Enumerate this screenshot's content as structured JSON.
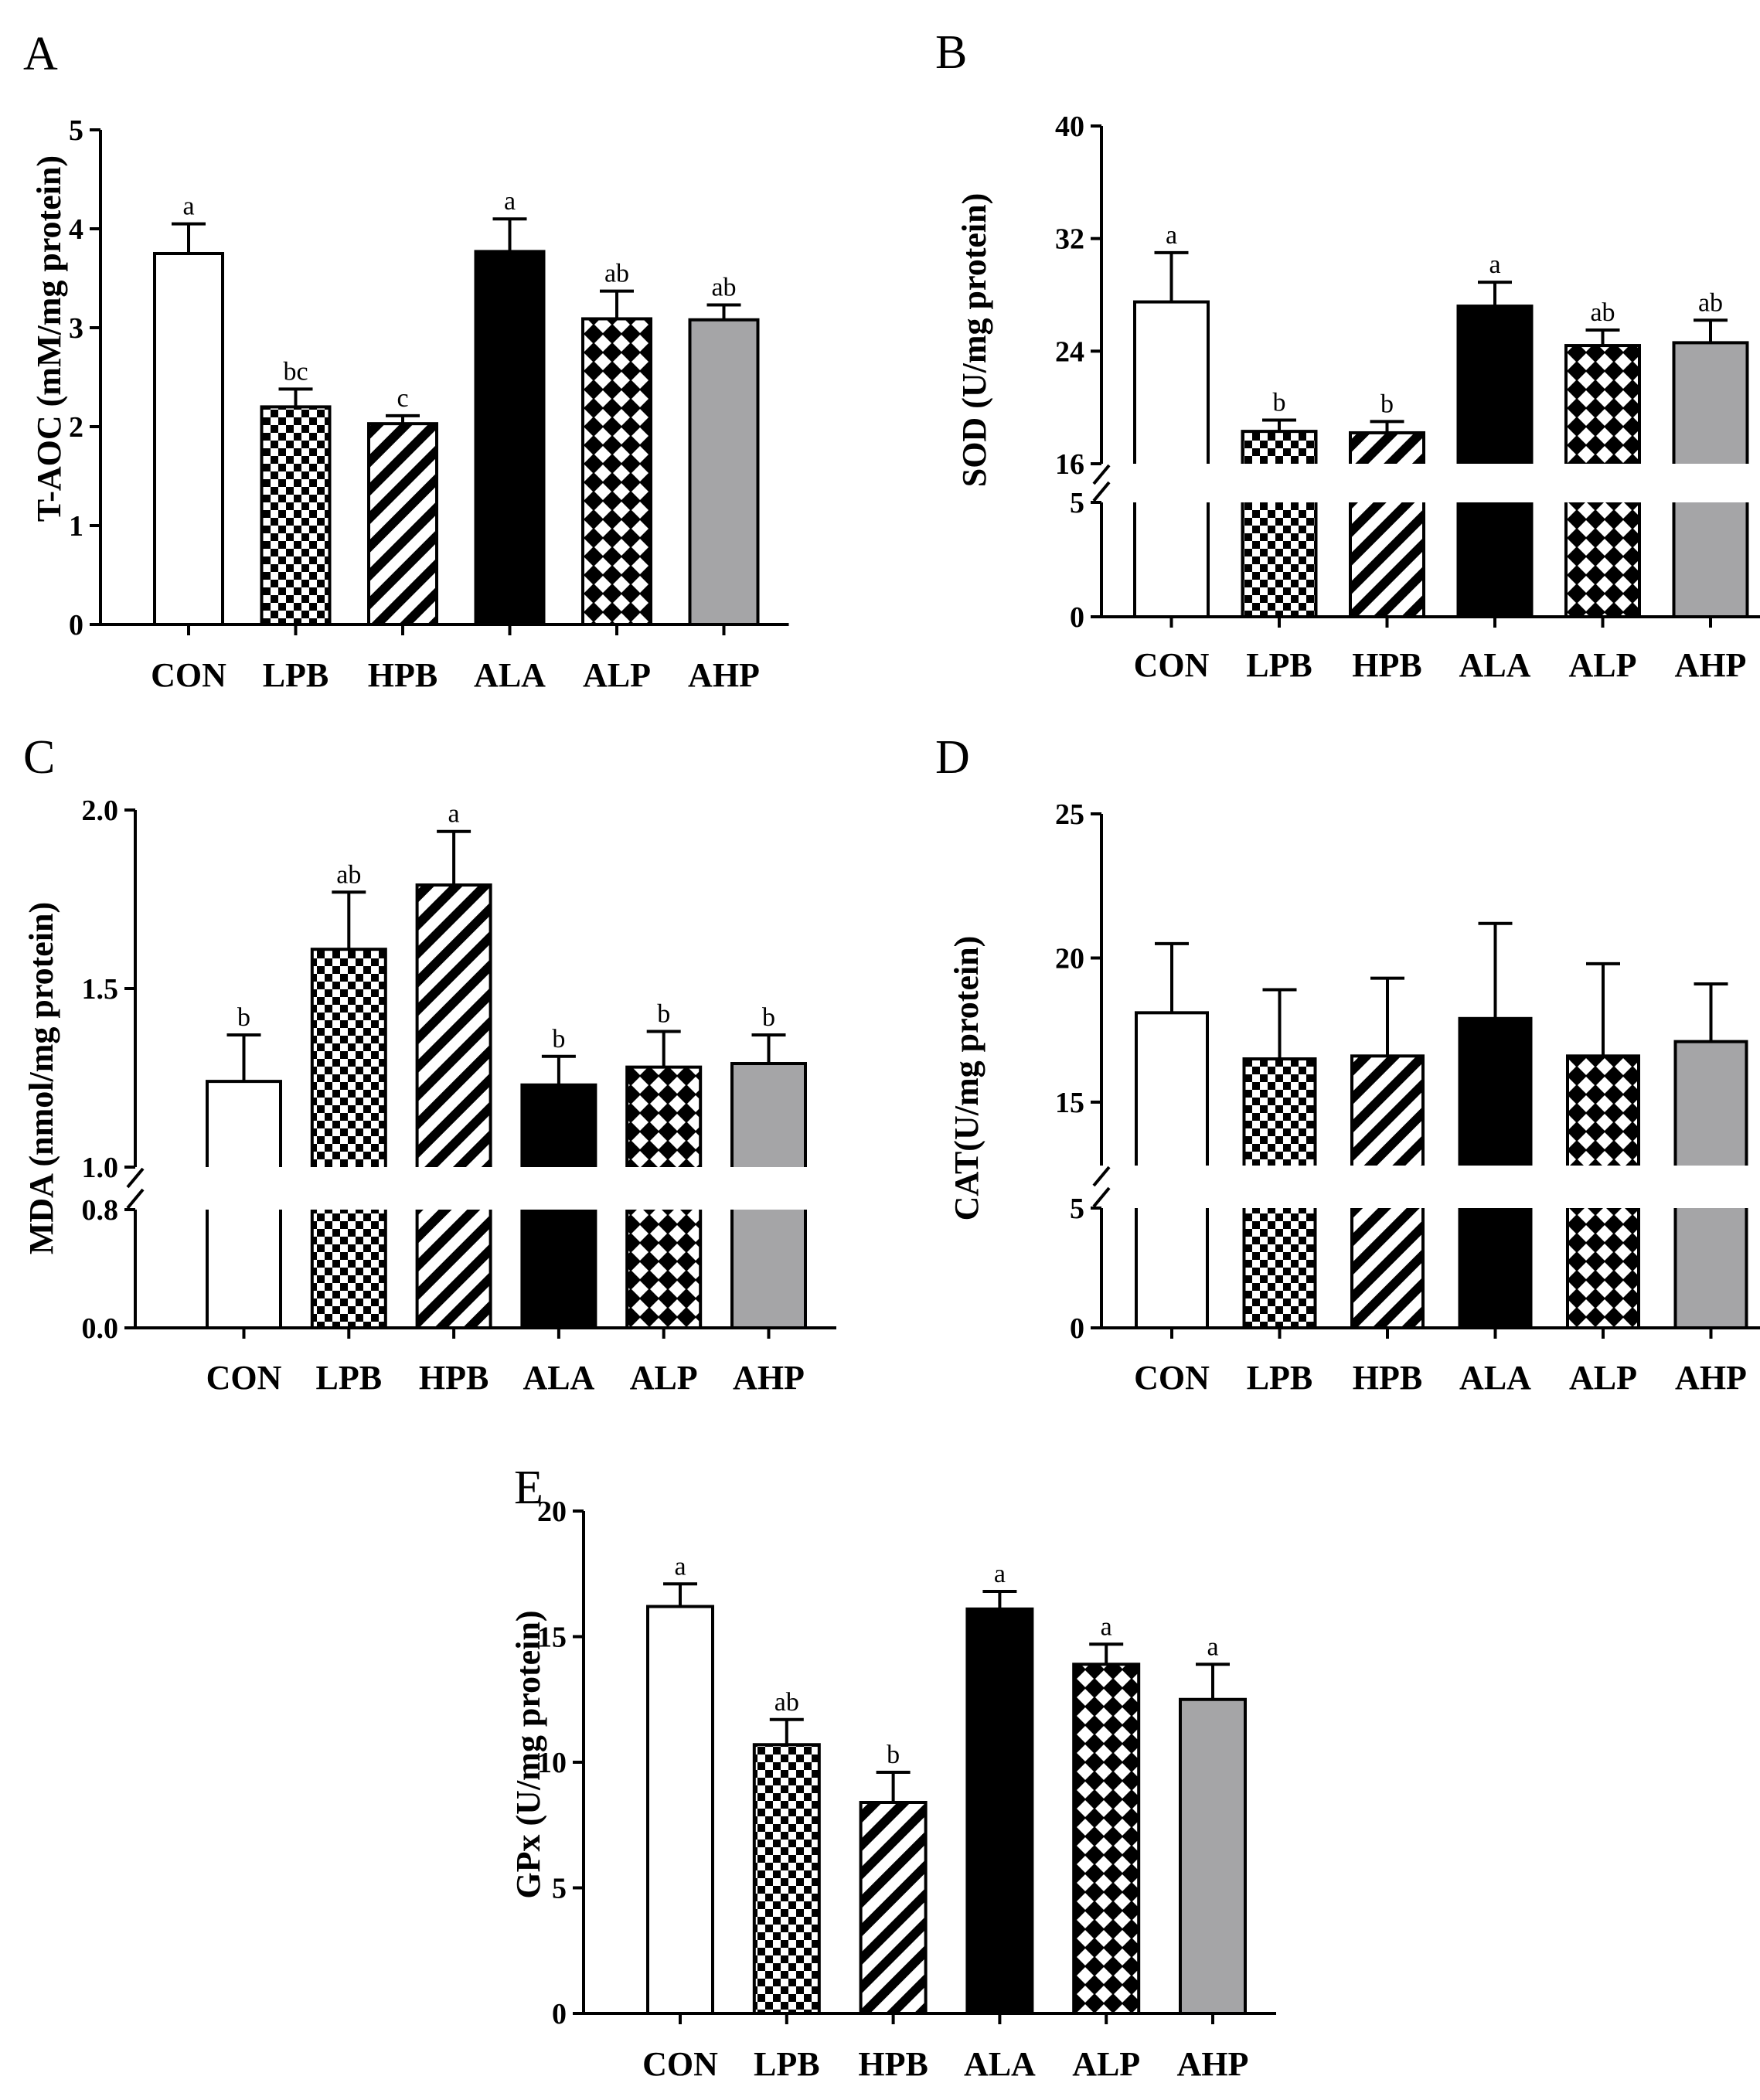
{
  "chart_data": [
    {
      "type": "bar",
      "panel": "A",
      "ylabel": "T-AOC (mM/mg protein)",
      "categories": [
        "CON",
        "LPB",
        "HPB",
        "ALA",
        "ALP",
        "AHP"
      ],
      "values": [
        3.75,
        2.2,
        2.03,
        3.77,
        3.09,
        3.08
      ],
      "errors": [
        0.3,
        0.18,
        0.08,
        0.33,
        0.28,
        0.15
      ],
      "significance": [
        "a",
        "bc",
        "c",
        "a",
        "ab",
        "ab"
      ],
      "ylim": [
        0,
        5
      ],
      "yticks": [
        "0",
        "1",
        "2",
        "3",
        "4",
        "5"
      ]
    },
    {
      "type": "bar",
      "panel": "B",
      "ylabel": "SOD (U/mg protein)",
      "categories": [
        "CON",
        "LPB",
        "HPB",
        "ALA",
        "ALP",
        "AHP"
      ],
      "values": [
        27.5,
        18.3,
        18.2,
        27.2,
        24.4,
        24.6
      ],
      "errors": [
        3.5,
        0.8,
        0.8,
        1.7,
        1.1,
        1.6
      ],
      "significance": [
        "a",
        "b",
        "b",
        "a",
        "ab",
        "ab"
      ],
      "axis_break": [
        5,
        16
      ],
      "ylim": [
        0,
        40
      ],
      "yticks": [
        "0",
        "5",
        "16",
        "24",
        "32",
        "40"
      ]
    },
    {
      "type": "bar",
      "panel": "C",
      "ylabel": "MDA (nmol/mg protein)",
      "categories": [
        "CON",
        "LPB",
        "HPB",
        "ALA",
        "ALP",
        "AHP"
      ],
      "values": [
        1.24,
        1.61,
        1.79,
        1.23,
        1.28,
        1.29
      ],
      "errors": [
        0.13,
        0.16,
        0.15,
        0.08,
        0.1,
        0.08
      ],
      "significance": [
        "b",
        "ab",
        "a",
        "b",
        "b",
        "b"
      ],
      "axis_break": [
        0.8,
        1.0
      ],
      "ylim": [
        0,
        2.0
      ],
      "yticks": [
        "0.0",
        "0.8",
        "1.0",
        "1.5",
        "2.0"
      ]
    },
    {
      "type": "bar",
      "panel": "D",
      "ylabel": "CAT(U/mg protein)",
      "categories": [
        "CON",
        "LPB",
        "HPB",
        "ALA",
        "ALP",
        "AHP"
      ],
      "values": [
        18.1,
        16.5,
        16.6,
        17.9,
        16.6,
        17.1
      ],
      "errors": [
        2.4,
        2.4,
        2.7,
        3.3,
        3.2,
        2.0
      ],
      "significance": [
        "",
        "",
        "",
        "",
        "",
        ""
      ],
      "axis_break": [
        5,
        12.8
      ],
      "ylim": [
        0,
        25
      ],
      "yticks": [
        "0",
        "5",
        "15",
        "20",
        "25"
      ]
    },
    {
      "type": "bar",
      "panel": "E",
      "ylabel": "GPx (U/mg protein)",
      "categories": [
        "CON",
        "LPB",
        "HPB",
        "ALA",
        "ALP",
        "AHP"
      ],
      "values": [
        16.2,
        10.7,
        8.4,
        16.1,
        13.9,
        12.5
      ],
      "errors": [
        0.9,
        1.0,
        1.2,
        0.7,
        0.8,
        1.4
      ],
      "significance": [
        "a",
        "ab",
        "b",
        "a",
        "a",
        "a"
      ],
      "ylim": [
        0,
        20
      ],
      "yticks": [
        "0",
        "5",
        "10",
        "15",
        "20"
      ]
    }
  ]
}
